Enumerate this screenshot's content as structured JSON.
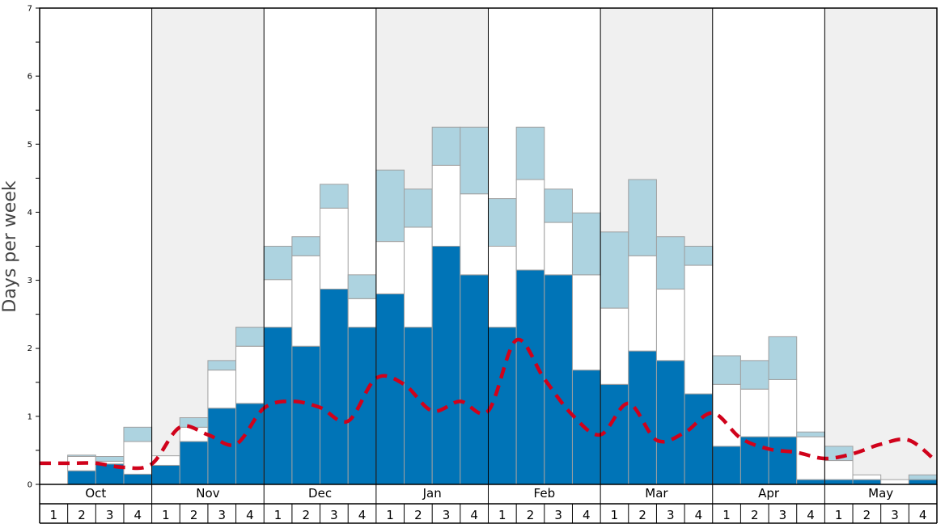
{
  "chart_data": {
    "type": "bar",
    "ylabel": "Days per week",
    "ylim": [
      0,
      7
    ],
    "yticks": [
      0,
      1,
      2,
      3,
      4,
      5,
      6,
      7
    ],
    "months": [
      "Oct",
      "Nov",
      "Dec",
      "Jan",
      "Feb",
      "Mar",
      "Apr",
      "May"
    ],
    "weeks": [
      "1",
      "2",
      "3",
      "4"
    ],
    "colors": {
      "dark": "#0074b7",
      "light": "#add3e0",
      "mid": "#ffffff",
      "band": "#f0f0f0",
      "trend": "#d0021b",
      "bar_edge": "#a0a0a0"
    },
    "series": [
      {
        "values": [
          0,
          0.2,
          0.3,
          0.15,
          0.28,
          0.63,
          1.12,
          1.19,
          2.31,
          2.03,
          2.87,
          2.31,
          2.8,
          2.31,
          3.5,
          3.08,
          2.31,
          3.15,
          3.08,
          1.68,
          1.47,
          1.96,
          1.82,
          1.33,
          0.56,
          0.7,
          0.7,
          0.07,
          0.07,
          0.07,
          0,
          0.07
        ]
      },
      {
        "values": [
          0,
          0.21,
          0.04,
          0.48,
          0.14,
          0.21,
          0.56,
          0.84,
          0.7,
          1.33,
          1.19,
          0.42,
          0.77,
          1.47,
          1.19,
          1.19,
          1.19,
          1.33,
          0.77,
          1.4,
          1.12,
          1.4,
          1.05,
          1.89,
          0.91,
          0.7,
          0.84,
          0.63,
          0.28,
          0.07,
          0.07,
          0
        ]
      },
      {
        "values": [
          0,
          0.02,
          0.07,
          0.21,
          0,
          0.14,
          0.14,
          0.28,
          0.49,
          0.28,
          0.35,
          0.35,
          1.05,
          0.56,
          0.56,
          0.98,
          0.7,
          0.77,
          0.49,
          0.91,
          1.12,
          1.12,
          0.77,
          0.28,
          0.42,
          0.42,
          0.63,
          0.07,
          0.21,
          0,
          0,
          0.07
        ]
      }
    ],
    "trend": [
      0.31,
      0.31,
      0.31,
      0.25,
      0.3,
      0.84,
      0.73,
      0.59,
      1.12,
      1.22,
      1.13,
      0.93,
      1.56,
      1.47,
      1.08,
      1.22,
      1.08,
      2.12,
      1.55,
      1.02,
      0.73,
      1.19,
      0.65,
      0.76,
      1.05,
      0.68,
      0.52,
      0.47,
      0.38,
      0.45,
      0.59,
      0.65,
      0.33
    ]
  }
}
